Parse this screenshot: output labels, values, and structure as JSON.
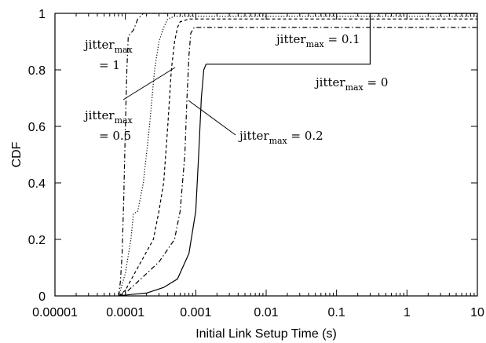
{
  "chart_data": {
    "type": "line",
    "title": "",
    "xlabel": "Initial Link Setup Time (s)",
    "ylabel": "CDF",
    "xscale": "log",
    "xlim": [
      1e-05,
      10
    ],
    "ylim": [
      0,
      1
    ],
    "grid": false,
    "x_tick_labels": [
      "0.00001",
      "0.0001",
      "0.001",
      "0.01",
      "0.1",
      "1",
      "10"
    ],
    "x_tick_values": [
      1e-05,
      0.0001,
      0.001,
      0.01,
      0.1,
      1,
      10
    ],
    "y_tick_labels": [
      "0",
      "0.2",
      "0.4",
      "0.6",
      "0.8",
      "1"
    ],
    "y_tick_values": [
      0,
      0.2,
      0.4,
      0.6,
      0.8,
      1
    ],
    "series": [
      {
        "name": "jitter_max = 1",
        "style": "dashdot",
        "points": [
          [
            8e-05,
            0
          ],
          [
            8.5e-05,
            0.05
          ],
          [
            9e-05,
            0.15
          ],
          [
            9.5e-05,
            0.35
          ],
          [
            0.0001,
            0.6
          ],
          [
            0.000105,
            0.8
          ],
          [
            0.00011,
            0.92
          ],
          [
            0.00013,
            0.94
          ],
          [
            0.00015,
            0.98
          ],
          [
            0.00018,
            1.0
          ],
          [
            0.3,
            1.0
          ],
          [
            10,
            1.0
          ]
        ]
      },
      {
        "name": "jitter_max = 0.5",
        "style": "dotted",
        "points": [
          [
            8e-05,
            0
          ],
          [
            8.5e-05,
            0.02
          ],
          [
            0.0001,
            0.08
          ],
          [
            0.00012,
            0.2
          ],
          [
            0.00013,
            0.29
          ],
          [
            0.00015,
            0.3
          ],
          [
            0.00018,
            0.4
          ],
          [
            0.00022,
            0.6
          ],
          [
            0.00026,
            0.8
          ],
          [
            0.0003,
            0.9
          ],
          [
            0.00035,
            0.95
          ],
          [
            0.0004,
            0.98
          ],
          [
            0.0005,
            0.99
          ],
          [
            0.3,
            0.99
          ],
          [
            10,
            0.99
          ]
        ]
      },
      {
        "name": "jitter_max = 0.1",
        "style": "dashed",
        "points": [
          [
            8e-05,
            0
          ],
          [
            0.0001,
            0.02
          ],
          [
            0.00015,
            0.1
          ],
          [
            0.00025,
            0.2
          ],
          [
            0.0003,
            0.3
          ],
          [
            0.00035,
            0.4
          ],
          [
            0.0004,
            0.6
          ],
          [
            0.00045,
            0.8
          ],
          [
            0.0005,
            0.9
          ],
          [
            0.00055,
            0.95
          ],
          [
            0.0006,
            0.97
          ],
          [
            0.0008,
            0.98
          ],
          [
            0.3,
            0.98
          ],
          [
            10,
            0.98
          ]
        ]
      },
      {
        "name": "jitter_max = 0.2",
        "style": "dashdot",
        "points": [
          [
            8e-05,
            0
          ],
          [
            0.0001,
            0.01
          ],
          [
            0.00015,
            0.05
          ],
          [
            0.0003,
            0.12
          ],
          [
            0.0005,
            0.2
          ],
          [
            0.0006,
            0.3
          ],
          [
            0.0007,
            0.5
          ],
          [
            0.00075,
            0.7
          ],
          [
            0.0008,
            0.85
          ],
          [
            0.00085,
            0.93
          ],
          [
            0.00095,
            0.95
          ],
          [
            0.3,
            0.95
          ],
          [
            10,
            0.95
          ]
        ]
      },
      {
        "name": "jitter_max = 0",
        "style": "solid",
        "points": [
          [
            8e-05,
            0
          ],
          [
            0.00012,
            0.005
          ],
          [
            0.0002,
            0.01
          ],
          [
            0.00035,
            0.03
          ],
          [
            0.00055,
            0.06
          ],
          [
            0.0008,
            0.15
          ],
          [
            0.001,
            0.3
          ],
          [
            0.0011,
            0.5
          ],
          [
            0.0012,
            0.7
          ],
          [
            0.0013,
            0.8
          ],
          [
            0.0014,
            0.82
          ],
          [
            0.3,
            0.82
          ],
          [
            0.3,
            1.0
          ],
          [
            10,
            1.0
          ]
        ]
      }
    ],
    "annotations": [
      {
        "base": "jitter",
        "sub": "max",
        "rest": "= 1",
        "layout": "two-line"
      },
      {
        "base": "jitter",
        "sub": "max",
        "rest": "= 0.5",
        "layout": "two-line"
      },
      {
        "base": "jitter",
        "sub": "max",
        "rest": " = 0.1",
        "layout": "inline"
      },
      {
        "base": "jitter",
        "sub": "max",
        "rest": " = 0.2",
        "layout": "inline"
      },
      {
        "base": "jitter",
        "sub": "max",
        "rest": " = 0",
        "layout": "inline"
      }
    ]
  }
}
